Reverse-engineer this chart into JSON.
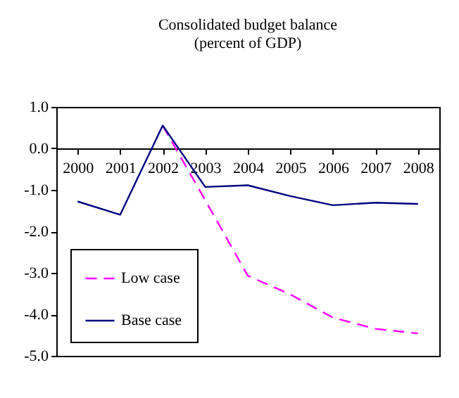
{
  "chart_data": {
    "type": "line",
    "title": "Consolidated budget balance",
    "subtitle": "(percent of GDP)",
    "categories": [
      "2000",
      "2001",
      "2002",
      "2003",
      "2004",
      "2005",
      "2006",
      "2007",
      "2008"
    ],
    "series": [
      {
        "name": "Low case",
        "color": "#ff00ff",
        "line_style": "dashed",
        "values": [
          null,
          null,
          0.55,
          -1.25,
          -3.07,
          -3.52,
          -4.08,
          -4.35,
          -4.46
        ]
      },
      {
        "name": "Base case",
        "color": "#000080",
        "line_style": "solid",
        "values": [
          -1.28,
          -1.6,
          0.55,
          -0.93,
          -0.89,
          -1.15,
          -1.37,
          -1.31,
          -1.34
        ]
      }
    ],
    "ylim": [
      -5,
      1
    ],
    "yticks": [
      {
        "value": 1,
        "label": "1.0"
      },
      {
        "value": 0,
        "label": "0.0"
      },
      {
        "value": -1,
        "label": "-1.0"
      },
      {
        "value": -2,
        "label": "-2.0"
      },
      {
        "value": -3,
        "label": "-3.0"
      },
      {
        "value": -4,
        "label": "-4.0"
      },
      {
        "value": -5,
        "label": "-5.0"
      }
    ],
    "grid": false,
    "legend": "bottom left",
    "marker": "none"
  }
}
